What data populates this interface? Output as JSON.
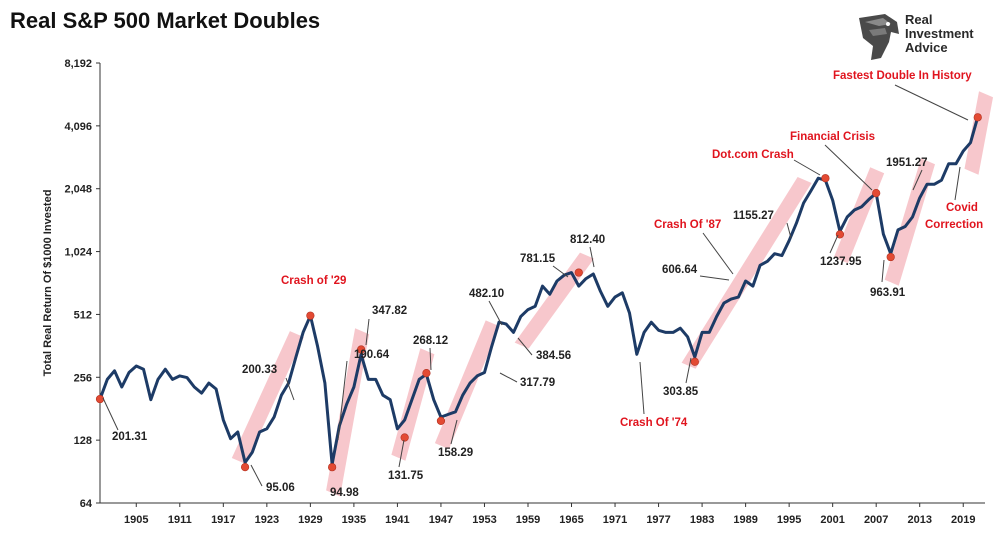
{
  "header": {
    "title": "Real S&P 500 Market Doubles"
  },
  "logo": {
    "icon": "eagle-head-icon",
    "line1": "Real",
    "line2": "Investment",
    "line3": "Advice"
  },
  "chart_data": {
    "type": "line",
    "title": "Real S&P 500 Market Doubles",
    "ylabel": "Total Real Return Of $1000 Invested",
    "xlabel": "",
    "yscale": "log2",
    "ylim": [
      64,
      8192
    ],
    "yticks": [
      "64",
      "128",
      "256",
      "512",
      "1,024",
      "2,048",
      "4,096",
      "8,192"
    ],
    "xlim": [
      1900,
      2022
    ],
    "xticks": [
      "1905",
      "1911",
      "1917",
      "1923",
      "1929",
      "1935",
      "1941",
      "1947",
      "1953",
      "1959",
      "1965",
      "1971",
      "1977",
      "1983",
      "1989",
      "1995",
      "2001",
      "2007",
      "2013",
      "2019"
    ],
    "grid": false,
    "colors": {
      "line": "#1d3b66",
      "highlight": "#f4b4bb",
      "marker": "#e34a33",
      "callout": "#e0141e"
    },
    "series": [
      {
        "values_x": [
          1900,
          1901,
          1902,
          1903,
          1904,
          1905,
          1906,
          1907,
          1908,
          1909,
          1910,
          1911,
          1912,
          1913,
          1914,
          1915,
          1916,
          1917,
          1918,
          1919,
          1920,
          1921,
          1922,
          1923,
          1924,
          1925,
          1926,
          1927,
          1928,
          1929,
          1930,
          1931,
          1932,
          1933,
          1934,
          1935,
          1936,
          1937,
          1938,
          1939,
          1940,
          1941,
          1942,
          1943,
          1944,
          1945,
          1946,
          1947,
          1948,
          1949,
          1950,
          1951,
          1952,
          1953,
          1954,
          1955,
          1956,
          1957,
          1958,
          1959,
          1960,
          1961,
          1962,
          1963,
          1964,
          1965,
          1966,
          1967,
          1968,
          1969,
          1970,
          1971,
          1972,
          1973,
          1974,
          1975,
          1976,
          1977,
          1978,
          1979,
          1980,
          1981,
          1982,
          1983,
          1984,
          1985,
          1986,
          1987,
          1988,
          1989,
          1990,
          1991,
          1992,
          1993,
          1994,
          1995,
          1996,
          1997,
          1998,
          1999,
          2000,
          2001,
          2002,
          2003,
          2004,
          2005,
          2006,
          2007,
          2008,
          2009,
          2010,
          2011,
          2012,
          2013,
          2014,
          2015,
          2016,
          2017,
          2018,
          2019,
          2020,
          2021
        ],
        "values_y": [
          201,
          250,
          275,
          230,
          270,
          290,
          280,
          200,
          250,
          280,
          250,
          260,
          255,
          230,
          215,
          240,
          225,
          160,
          130,
          140,
          100,
          112,
          140,
          145,
          165,
          210,
          240,
          320,
          420,
          505,
          360,
          240,
          98,
          150,
          190,
          230,
          330,
          250,
          250,
          210,
          200,
          145,
          160,
          200,
          250,
          265,
          200,
          165,
          170,
          175,
          210,
          240,
          260,
          270,
          360,
          470,
          460,
          420,
          500,
          540,
          560,
          700,
          640,
          740,
          790,
          812,
          700,
          760,
          800,
          660,
          560,
          620,
          650,
          520,
          330,
          420,
          470,
          430,
          420,
          420,
          440,
          400,
          320,
          420,
          420,
          500,
          580,
          606,
          620,
          740,
          700,
          880,
          920,
          1000,
          980,
          1155,
          1400,
          1750,
          2000,
          2300,
          2250,
          1800,
          1280,
          1500,
          1620,
          1680,
          1820,
          1950,
          1240,
          1000,
          1300,
          1350,
          1500,
          1850,
          2150,
          2150,
          2250,
          2700,
          2700,
          3100,
          3400,
          4500
        ]
      }
    ],
    "highlight_bands": [
      {
        "start": 1919,
        "end": 1927
      },
      {
        "start": 1932,
        "end": 1936
      },
      {
        "start": 1941,
        "end": 1945
      },
      {
        "start": 1947,
        "end": 1954
      },
      {
        "start": 1958,
        "end": 1967
      },
      {
        "start": 1981,
        "end": 1997
      },
      {
        "start": 2002,
        "end": 2007
      },
      {
        "start": 2009,
        "end": 2014
      },
      {
        "start": 2020,
        "end": 2022
      }
    ],
    "markers": [
      {
        "x": 1900,
        "y": 201.31
      },
      {
        "x": 1920,
        "y": 95.06
      },
      {
        "x": 1929,
        "y": 505
      },
      {
        "x": 1932,
        "y": 94.98
      },
      {
        "x": 1936,
        "y": 347.82
      },
      {
        "x": 1942,
        "y": 131.75
      },
      {
        "x": 1945,
        "y": 268.12
      },
      {
        "x": 1947,
        "y": 158.29
      },
      {
        "x": 1966,
        "y": 812.4
      },
      {
        "x": 1982,
        "y": 303.85
      },
      {
        "x": 2000,
        "y": 2300
      },
      {
        "x": 2002,
        "y": 1237.95
      },
      {
        "x": 2007,
        "y": 1951.27
      },
      {
        "x": 2009,
        "y": 963.91
      },
      {
        "x": 2021,
        "y": 4500
      }
    ],
    "annotations": [
      {
        "text": "201.31",
        "red": false
      },
      {
        "text": "95.06",
        "red": false
      },
      {
        "text": "200.33",
        "red": false
      },
      {
        "text": "94.98",
        "red": false
      },
      {
        "text": "190.64",
        "red": false
      },
      {
        "text": "347.82",
        "red": false
      },
      {
        "text": "131.75",
        "red": false
      },
      {
        "text": "268.12",
        "red": false
      },
      {
        "text": "158.29",
        "red": false
      },
      {
        "text": "317.79",
        "red": false
      },
      {
        "text": "482.10",
        "red": false
      },
      {
        "text": "384.56",
        "red": false
      },
      {
        "text": "781.15",
        "red": false
      },
      {
        "text": "812.40",
        "red": false
      },
      {
        "text": "303.85",
        "red": false
      },
      {
        "text": "606.64",
        "red": false
      },
      {
        "text": "1155.27",
        "red": false
      },
      {
        "text": "1237.95",
        "red": false
      },
      {
        "text": "1951.27",
        "red": false
      },
      {
        "text": "963.91",
        "red": false
      },
      {
        "text": "Crash of '29",
        "red": true
      },
      {
        "text": "Crash Of '74",
        "red": true
      },
      {
        "text": "Crash Of '87",
        "red": true
      },
      {
        "text": "Dot.com Crash",
        "red": true
      },
      {
        "text": "Financial Crisis",
        "red": true
      },
      {
        "text": "Fastest Double In History",
        "red": true
      },
      {
        "text": "Covid",
        "red": true
      },
      {
        "text": "Correction",
        "red": true
      }
    ]
  }
}
